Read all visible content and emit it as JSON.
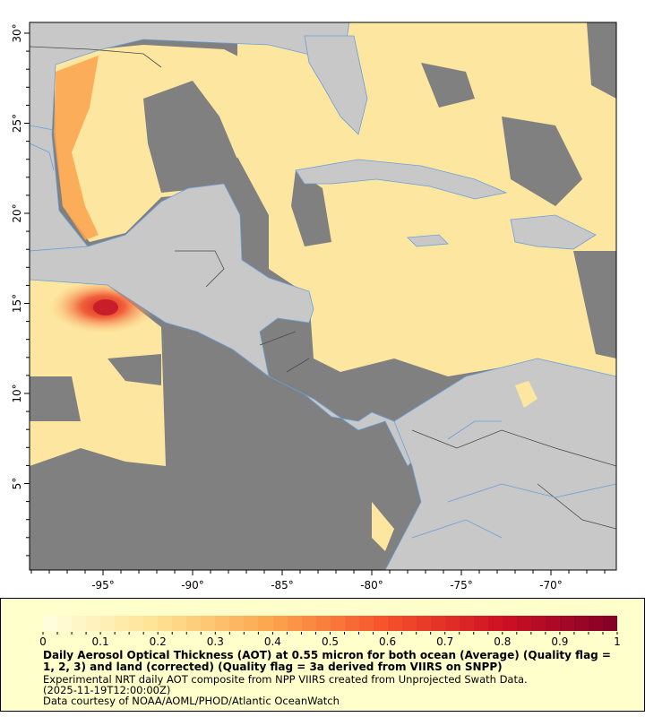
{
  "map": {
    "lat_labels": [
      "30°",
      "25°",
      "20°",
      "15°",
      "10°",
      "5°"
    ],
    "lat_values": [
      30,
      25,
      20,
      15,
      10,
      5
    ],
    "lon_labels": [
      "-95°",
      "-90°",
      "-85°",
      "-80°",
      "-75°",
      "-70°"
    ],
    "lon_values": [
      -95,
      -90,
      -85,
      -80,
      -75,
      -70
    ],
    "colors": {
      "nodata": "#808080",
      "land": "#c8c8c8",
      "river": "#6a9fd8",
      "border": "#4a4a4a",
      "aot_low": "#fdedb0",
      "aot_mid": "#fbb45a",
      "aot_high": "#e0301e"
    }
  },
  "legend": {
    "colorbar_labels": [
      "0",
      "0.1",
      "0.2",
      "0.3",
      "0.4",
      "0.5",
      "0.6",
      "0.7",
      "0.8",
      "0.9",
      "1"
    ],
    "range": [
      0,
      1
    ],
    "title": "Daily Aerosol Optical Thickness (AOT) at 0.55 micron for both ocean (Average) (Quality flag = 1, 2, 3) and land (corrected) (Quality flag = 3a derived from VIIRS on SNPP)",
    "line1": "Experimental NRT daily AOT composite from NPP VIIRS created from Unprojected Swath Data.",
    "line2": "(2025-11-19T12:00:00Z)",
    "line3": "Data courtesy of NOAA/AOML/PHOD/Atlantic OceanWatch"
  }
}
